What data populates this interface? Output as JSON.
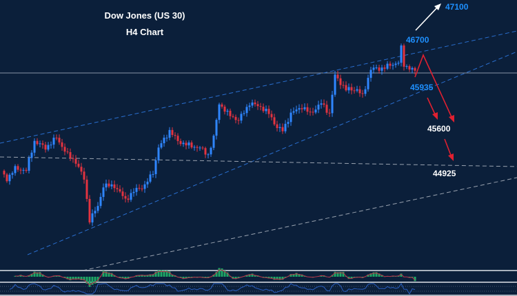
{
  "chart_data": {
    "type": "candlestick",
    "title": "Dow Jones (US 30)",
    "subtitle": "H4 Chart",
    "ylim": [
      43570,
      47525
    ],
    "close_keypoints": [
      [
        0,
        44924
      ],
      [
        2,
        44820
      ],
      [
        5,
        44976
      ],
      [
        9,
        44950
      ],
      [
        12,
        45392
      ],
      [
        16,
        45288
      ],
      [
        20,
        45444
      ],
      [
        24,
        45184
      ],
      [
        27,
        45080
      ],
      [
        30,
        44820
      ],
      [
        32,
        44200
      ],
      [
        35,
        44404
      ],
      [
        37,
        44716
      ],
      [
        41,
        44716
      ],
      [
        45,
        44508
      ],
      [
        49,
        44664
      ],
      [
        52,
        44716
      ],
      [
        55,
        44924
      ],
      [
        57,
        45288
      ],
      [
        61,
        45548
      ],
      [
        64,
        45392
      ],
      [
        67,
        45340
      ],
      [
        72,
        45288
      ],
      [
        75,
        45184
      ],
      [
        77,
        45444
      ],
      [
        79,
        45964
      ],
      [
        82,
        45808
      ],
      [
        86,
        45704
      ],
      [
        90,
        45964
      ],
      [
        94,
        45912
      ],
      [
        97,
        45808
      ],
      [
        100,
        45600
      ],
      [
        102,
        45548
      ],
      [
        105,
        45808
      ],
      [
        109,
        45912
      ],
      [
        112,
        45808
      ],
      [
        116,
        45964
      ],
      [
        119,
        45808
      ],
      [
        121,
        46380
      ],
      [
        125,
        46172
      ],
      [
        129,
        46172
      ],
      [
        131,
        46068
      ],
      [
        134,
        46484
      ],
      [
        137,
        46484
      ],
      [
        141,
        46536
      ],
      [
        144,
        46588
      ],
      [
        145,
        46796
      ],
      [
        146,
        46536
      ],
      [
        149,
        46484
      ],
      [
        150,
        46432
      ]
    ],
    "levels": [
      {
        "label": "47100",
        "value": 47100,
        "color": "#1e90ff"
      },
      {
        "label": "46700",
        "value": 46700,
        "color": "#1e90ff"
      },
      {
        "label": "45935",
        "value": 45935,
        "color": "#1e90ff"
      },
      {
        "label": "45600",
        "value": 45600,
        "color": "#ffffff"
      },
      {
        "label": "44925",
        "value": 44925,
        "color": "#ffffff"
      }
    ],
    "colors": {
      "up": "#2f86ff",
      "down": "#e23340",
      "background": "#0b1f3a",
      "trend": "#2a6fd0"
    },
    "indicators": [
      "MACD histogram",
      "RSI"
    ]
  }
}
